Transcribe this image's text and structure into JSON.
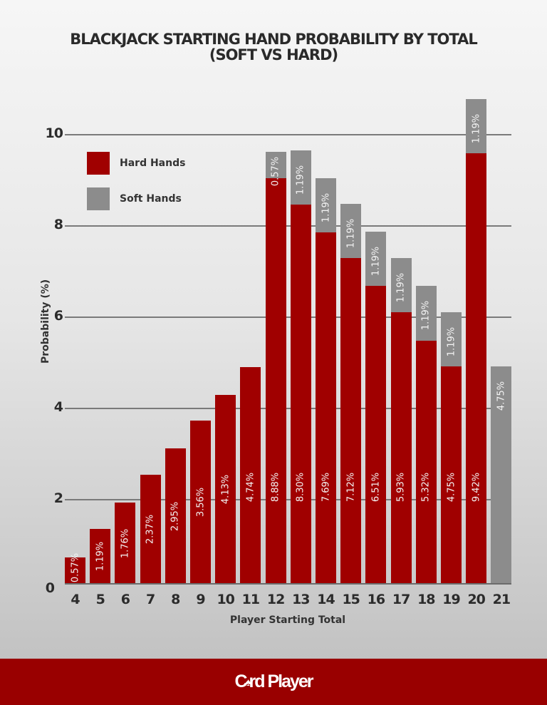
{
  "title_line1": "BLACKJACK STARTING HAND PROBABILITY BY TOTAL",
  "title_line2": "(SOFT VS HARD)",
  "legend": [
    {
      "label": "Hard Hands",
      "color": "#a00000"
    },
    {
      "label": "Soft Hands",
      "color": "#8c8c8c"
    }
  ],
  "footer": {
    "logo_part1": "C",
    "logo_icon": "spade-icon",
    "logo_part2": "rd Player",
    "background": "#990000"
  },
  "chart_data": {
    "type": "bar",
    "stacked": true,
    "title": "BLACKJACK STARTING HAND PROBABILITY BY TOTAL (SOFT VS HARD)",
    "xlabel": "Player Starting Total",
    "ylabel": "Probability (%)",
    "ylim": [
      0,
      11
    ],
    "yticks": [
      0,
      2,
      4,
      6,
      8,
      10
    ],
    "grid": true,
    "legend_position": "upper left",
    "categories": [
      "4",
      "5",
      "6",
      "7",
      "8",
      "9",
      "10",
      "11",
      "12",
      "13",
      "14",
      "15",
      "16",
      "17",
      "18",
      "19",
      "20",
      "21"
    ],
    "series": [
      {
        "name": "Hard Hands",
        "color": "#a00000",
        "values": [
          0.57,
          1.19,
          1.76,
          2.37,
          2.95,
          3.56,
          4.13,
          4.74,
          8.88,
          8.3,
          7.69,
          7.12,
          6.51,
          5.93,
          5.32,
          4.75,
          9.42,
          0
        ],
        "labels": [
          "0.57%",
          "1.19%",
          "1.76%",
          "2.37%",
          "2.95%",
          "3.56%",
          "4.13%",
          "4.74%",
          "8.88%",
          "8.30%",
          "7.69%",
          "7.12%",
          "6.51%",
          "5.93%",
          "5.32%",
          "4.75%",
          "9.42%",
          ""
        ]
      },
      {
        "name": "Soft Hands",
        "color": "#8c8c8c",
        "values": [
          0,
          0,
          0,
          0,
          0,
          0,
          0,
          0,
          0.57,
          1.19,
          1.19,
          1.19,
          1.19,
          1.19,
          1.19,
          1.19,
          1.19,
          4.75
        ],
        "labels": [
          "",
          "",
          "",
          "",
          "",
          "",
          "",
          "",
          "0.57%",
          "1.19%",
          "1.19%",
          "1.19%",
          "1.19%",
          "1.19%",
          "1.19%",
          "1.19%",
          "1.19%",
          "4.75%"
        ]
      }
    ]
  }
}
